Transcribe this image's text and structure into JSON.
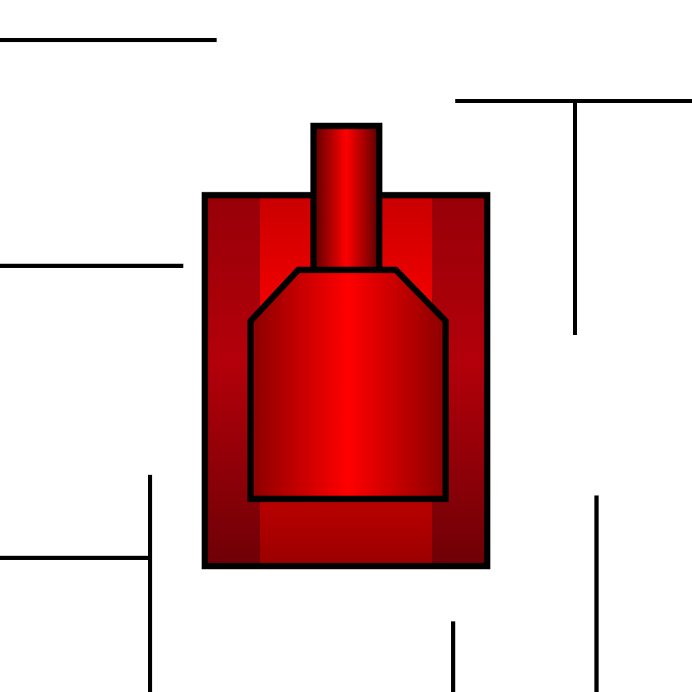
{
  "game": {
    "view": "top-down",
    "background_color": "#ffffff",
    "wall_color": "#000000"
  },
  "player_tank": {
    "color": "#d40000",
    "highlight_color": "#ff0000",
    "shadow_color": "#700000",
    "outline_color": "#000000",
    "facing": "up",
    "parts": [
      "tank-hull",
      "left-track",
      "right-track",
      "tank-turret",
      "tank-barrel"
    ]
  }
}
